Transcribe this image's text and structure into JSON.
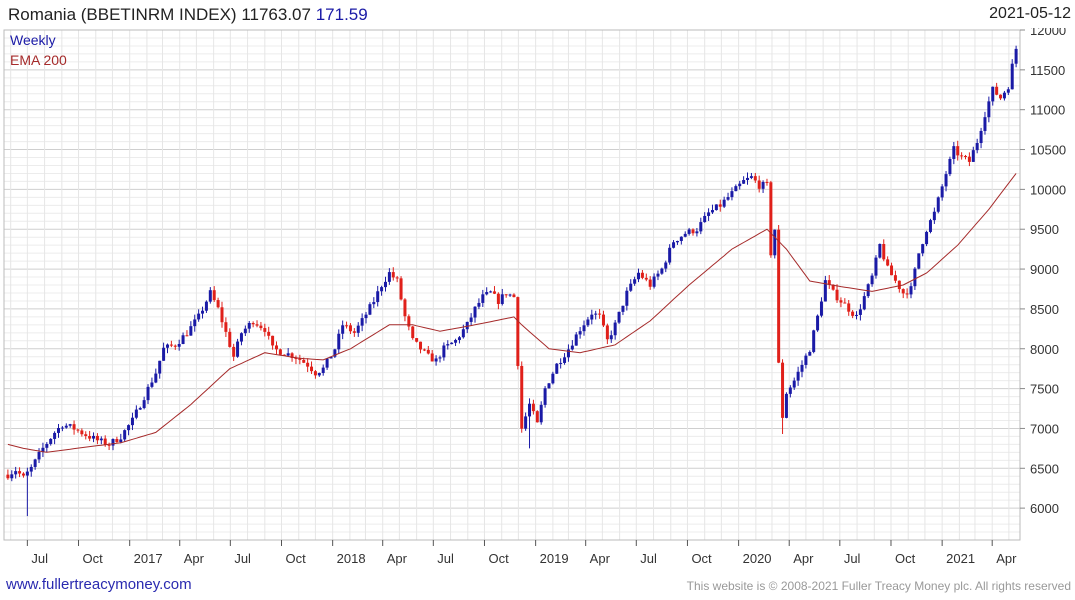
{
  "header": {
    "title": "Romania (BBETINRM INDEX) 11763.07",
    "change": "171.59",
    "date": "2021-05-12"
  },
  "footer": {
    "site": "www.fullertreacymoney.com",
    "copyright": "This website is © 2008-2021 Fuller Treacy Money plc. All rights reserved"
  },
  "colors": {
    "up": "#1a1aa6",
    "down": "#e0201a",
    "ema": "#a52a2a",
    "grid": "#d9d9d9"
  },
  "chart_data": {
    "type": "candlestick",
    "legend": [
      {
        "name": "Weekly",
        "color": "#1a1aa6"
      },
      {
        "name": "EMA 200",
        "color": "#a52a2a"
      }
    ],
    "legend_placement": "top-left",
    "grid": true,
    "ylim": [
      5600,
      12000
    ],
    "y_ticks": [
      6000,
      6500,
      7000,
      7500,
      8000,
      8500,
      9000,
      9500,
      10000,
      10500,
      11000,
      11500,
      12000
    ],
    "x_range": [
      "2016-05-20",
      "2021-05-21"
    ],
    "x_ticks": [
      {
        "label": "Jul",
        "date": "2016-07-01"
      },
      {
        "label": "Oct",
        "date": "2016-10-01"
      },
      {
        "label": "2017",
        "date": "2017-01-01"
      },
      {
        "label": "Apr",
        "date": "2017-04-01"
      },
      {
        "label": "Jul",
        "date": "2017-07-01"
      },
      {
        "label": "Oct",
        "date": "2017-10-01"
      },
      {
        "label": "2018",
        "date": "2018-01-01"
      },
      {
        "label": "Apr",
        "date": "2018-04-01"
      },
      {
        "label": "Jul",
        "date": "2018-07-01"
      },
      {
        "label": "Oct",
        "date": "2018-10-01"
      },
      {
        "label": "2019",
        "date": "2019-01-01"
      },
      {
        "label": "Apr",
        "date": "2019-04-01"
      },
      {
        "label": "Jul",
        "date": "2019-07-01"
      },
      {
        "label": "Oct",
        "date": "2019-10-01"
      },
      {
        "label": "2020",
        "date": "2020-01-01"
      },
      {
        "label": "Apr",
        "date": "2020-04-01"
      },
      {
        "label": "Jul",
        "date": "2020-07-01"
      },
      {
        "label": "Oct",
        "date": "2020-10-01"
      },
      {
        "label": "2021",
        "date": "2021-01-01"
      },
      {
        "label": "Apr",
        "date": "2021-04-01"
      }
    ],
    "close_anchors": [
      [
        "2016-05-27",
        6420
      ],
      [
        "2016-06-10",
        6480
      ],
      [
        "2016-06-24",
        6380
      ],
      [
        "2016-07-08",
        6500
      ],
      [
        "2016-07-29",
        6750
      ],
      [
        "2016-08-19",
        6950
      ],
      [
        "2016-09-02",
        7050
      ],
      [
        "2016-09-23",
        7000
      ],
      [
        "2016-10-14",
        6920
      ],
      [
        "2016-11-04",
        6850
      ],
      [
        "2016-11-25",
        6800
      ],
      [
        "2016-12-16",
        6900
      ],
      [
        "2017-01-06",
        7100
      ],
      [
        "2017-01-27",
        7400
      ],
      [
        "2017-02-17",
        7700
      ],
      [
        "2017-03-03",
        8000
      ],
      [
        "2017-03-24",
        8050
      ],
      [
        "2017-04-14",
        8200
      ],
      [
        "2017-05-05",
        8400
      ],
      [
        "2017-05-26",
        8700
      ],
      [
        "2017-06-09",
        8500
      ],
      [
        "2017-06-23",
        8200
      ],
      [
        "2017-07-07",
        7900
      ],
      [
        "2017-07-21",
        8200
      ],
      [
        "2017-08-11",
        8350
      ],
      [
        "2017-09-01",
        8250
      ],
      [
        "2017-09-15",
        8000
      ],
      [
        "2017-10-06",
        7950
      ],
      [
        "2017-10-27",
        7900
      ],
      [
        "2017-11-17",
        7800
      ],
      [
        "2017-12-01",
        7700
      ],
      [
        "2017-12-15",
        7750
      ],
      [
        "2018-01-05",
        8000
      ],
      [
        "2018-01-19",
        8300
      ],
      [
        "2018-02-09",
        8200
      ],
      [
        "2018-02-23",
        8350
      ],
      [
        "2018-03-16",
        8600
      ],
      [
        "2018-03-30",
        8800
      ],
      [
        "2018-04-13",
        8950
      ],
      [
        "2018-04-27",
        8850
      ],
      [
        "2018-05-11",
        8400
      ],
      [
        "2018-05-25",
        8100
      ],
      [
        "2018-06-08",
        8000
      ],
      [
        "2018-06-22",
        7900
      ],
      [
        "2018-07-06",
        7850
      ],
      [
        "2018-07-20",
        8000
      ],
      [
        "2018-08-10",
        8100
      ],
      [
        "2018-08-31",
        8300
      ],
      [
        "2018-09-14",
        8500
      ],
      [
        "2018-09-28",
        8650
      ],
      [
        "2018-10-12",
        8700
      ],
      [
        "2018-10-26",
        8600
      ],
      [
        "2018-11-09",
        8700
      ],
      [
        "2018-11-23",
        8650
      ],
      [
        "2018-12-07",
        7000
      ],
      [
        "2018-12-21",
        7300
      ],
      [
        "2019-01-04",
        7050
      ],
      [
        "2019-01-18",
        7500
      ],
      [
        "2019-02-08",
        7800
      ],
      [
        "2019-03-01",
        8000
      ],
      [
        "2019-03-22",
        8250
      ],
      [
        "2019-04-12",
        8450
      ],
      [
        "2019-04-26",
        8400
      ],
      [
        "2019-05-10",
        8100
      ],
      [
        "2019-05-24",
        8300
      ],
      [
        "2019-06-14",
        8700
      ],
      [
        "2019-07-05",
        8950
      ],
      [
        "2019-07-26",
        8800
      ],
      [
        "2019-08-16",
        9000
      ],
      [
        "2019-09-06",
        9350
      ],
      [
        "2019-09-27",
        9450
      ],
      [
        "2019-10-18",
        9500
      ],
      [
        "2019-11-08",
        9700
      ],
      [
        "2019-11-29",
        9800
      ],
      [
        "2019-12-20",
        9950
      ],
      [
        "2020-01-10",
        10100
      ],
      [
        "2020-01-24",
        10150
      ],
      [
        "2020-02-07",
        10050
      ],
      [
        "2020-02-21",
        10050
      ],
      [
        "2020-02-28",
        9200
      ],
      [
        "2020-03-06",
        9500
      ],
      [
        "2020-03-13",
        7800
      ],
      [
        "2020-03-20",
        7150
      ],
      [
        "2020-03-27",
        7450
      ],
      [
        "2020-04-10",
        7600
      ],
      [
        "2020-04-24",
        7800
      ],
      [
        "2020-05-08",
        8000
      ],
      [
        "2020-05-22",
        8400
      ],
      [
        "2020-06-05",
        8850
      ],
      [
        "2020-06-19",
        8700
      ],
      [
        "2020-07-03",
        8600
      ],
      [
        "2020-07-17",
        8500
      ],
      [
        "2020-07-31",
        8400
      ],
      [
        "2020-08-14",
        8650
      ],
      [
        "2020-08-28",
        8900
      ],
      [
        "2020-09-11",
        9300
      ],
      [
        "2020-09-25",
        9000
      ],
      [
        "2020-10-09",
        8850
      ],
      [
        "2020-10-23",
        8700
      ],
      [
        "2020-11-06",
        8750
      ],
      [
        "2020-11-20",
        9200
      ],
      [
        "2020-12-04",
        9500
      ],
      [
        "2020-12-18",
        9700
      ],
      [
        "2021-01-08",
        10200
      ],
      [
        "2021-01-22",
        10500
      ],
      [
        "2021-02-05",
        10400
      ],
      [
        "2021-02-19",
        10350
      ],
      [
        "2021-03-05",
        10600
      ],
      [
        "2021-03-19",
        10950
      ],
      [
        "2021-04-02",
        11250
      ],
      [
        "2021-04-16",
        11150
      ],
      [
        "2021-04-30",
        11300
      ],
      [
        "2021-05-07",
        11550
      ],
      [
        "2021-05-14",
        11763
      ]
    ],
    "ema_anchors": [
      [
        "2016-05-27",
        6800
      ],
      [
        "2016-06-24",
        6750
      ],
      [
        "2016-08-05",
        6700
      ],
      [
        "2016-10-07",
        6760
      ],
      [
        "2016-12-16",
        6820
      ],
      [
        "2017-02-17",
        6950
      ],
      [
        "2017-04-21",
        7300
      ],
      [
        "2017-06-30",
        7750
      ],
      [
        "2017-09-01",
        7950
      ],
      [
        "2017-11-03",
        7880
      ],
      [
        "2017-12-15",
        7860
      ],
      [
        "2018-02-02",
        8000
      ],
      [
        "2018-04-13",
        8300
      ],
      [
        "2018-05-25",
        8300
      ],
      [
        "2018-07-13",
        8220
      ],
      [
        "2018-09-14",
        8300
      ],
      [
        "2018-11-23",
        8400
      ],
      [
        "2018-12-07",
        8300
      ],
      [
        "2019-01-25",
        8000
      ],
      [
        "2019-03-22",
        7950
      ],
      [
        "2019-05-24",
        8050
      ],
      [
        "2019-07-26",
        8350
      ],
      [
        "2019-10-04",
        8800
      ],
      [
        "2019-12-20",
        9250
      ],
      [
        "2020-02-21",
        9500
      ],
      [
        "2020-03-27",
        9250
      ],
      [
        "2020-05-08",
        8850
      ],
      [
        "2020-07-03",
        8780
      ],
      [
        "2020-08-28",
        8720
      ],
      [
        "2020-10-23",
        8800
      ],
      [
        "2020-12-04",
        8950
      ],
      [
        "2021-01-29",
        9300
      ],
      [
        "2021-03-26",
        9750
      ],
      [
        "2021-05-14",
        10200
      ]
    ],
    "extreme_lows": [
      [
        "2016-07-01",
        5900
      ],
      [
        "2018-12-21",
        6750
      ],
      [
        "2020-03-20",
        6930
      ]
    ]
  }
}
